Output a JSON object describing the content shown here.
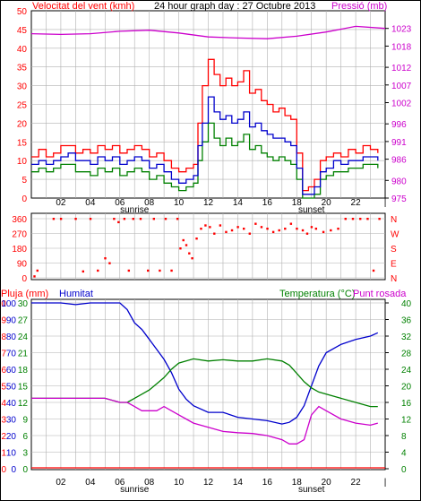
{
  "colors": {
    "wind_speed": "#ff0000",
    "wind_gust": "#ff0000",
    "wind_avg": "#0000cc",
    "wind_low": "#008000",
    "pressure": "#cc00cc",
    "direction": "#ff0000",
    "rain": "#ff0000",
    "humidity": "#0000cc",
    "temperature": "#008000",
    "dewpoint": "#cc00cc",
    "grid": "#b0b0b0",
    "frame": "#000000"
  },
  "chart_data": [
    {
      "type": "line",
      "panel": "wind-pressure",
      "title": "24 hour graph day : 27 Octubre 2013",
      "ylabel_left": "Velocitat del vent (kmh)",
      "ylabel_right": "Pressió (mb)",
      "x_ticks": [
        "02",
        "04",
        "06",
        "08",
        "10",
        "12",
        "14",
        "16",
        "18",
        "20",
        "22",
        "|"
      ],
      "x_annotations": [
        "sunrise",
        "sunset"
      ],
      "y_left_ticks": [
        "0",
        "5",
        "10",
        "15",
        "20",
        "25",
        "30",
        "35",
        "40",
        "45",
        "50"
      ],
      "y_right_ticks": [
        "975",
        "980",
        "986",
        "991",
        "996",
        "1002",
        "1007",
        "1012",
        "1018",
        "1023"
      ],
      "ylim_left": [
        0,
        50
      ],
      "ylim_right": [
        975,
        1028
      ],
      "x_range_hours": [
        0,
        24
      ],
      "grid": true,
      "series": [
        {
          "key": "gust",
          "x": [
            0,
            0.5,
            1,
            1.5,
            2,
            2.5,
            3,
            3.5,
            4,
            4.5,
            5,
            5.5,
            6,
            6.5,
            7,
            7.5,
            8,
            8.5,
            9,
            9.5,
            10,
            10.5,
            11,
            11.3,
            11.6,
            12,
            12.4,
            12.8,
            13.2,
            13.6,
            14,
            14.4,
            14.8,
            15.2,
            15.6,
            16,
            16.4,
            16.8,
            17.2,
            17.6,
            18,
            18.4,
            18.8,
            19.2,
            19.6,
            20,
            20.5,
            21,
            21.5,
            22,
            22.5,
            23,
            23.5
          ],
          "y": [
            11,
            13,
            11,
            12,
            14,
            14,
            12,
            13,
            12,
            14,
            13,
            14,
            12,
            13,
            14,
            13,
            11,
            12,
            10,
            8,
            7,
            8,
            9,
            20,
            30,
            37,
            33,
            30,
            32,
            30,
            31,
            34,
            28,
            29,
            26,
            25,
            23,
            24,
            22,
            21,
            12,
            2,
            3,
            5,
            10,
            11,
            12,
            11,
            13,
            12,
            14,
            13,
            12
          ]
        },
        {
          "key": "average",
          "x": [
            0,
            0.5,
            1,
            1.5,
            2,
            2.5,
            3,
            3.5,
            4,
            4.5,
            5,
            5.5,
            6,
            6.5,
            7,
            7.5,
            8,
            8.5,
            9,
            9.5,
            10,
            10.5,
            11,
            11.3,
            11.6,
            12,
            12.4,
            12.8,
            13.2,
            13.6,
            14,
            14.4,
            14.8,
            15.2,
            15.6,
            16,
            16.4,
            16.8,
            17.2,
            17.6,
            18,
            18.4,
            18.8,
            19.2,
            19.6,
            20,
            20.5,
            21,
            21.5,
            22,
            22.5,
            23,
            23.5
          ],
          "y": [
            9,
            10,
            9,
            10,
            11,
            12,
            10,
            10,
            9,
            11,
            10,
            11,
            9,
            10,
            11,
            10,
            8,
            9,
            7,
            5,
            4,
            5,
            6,
            14,
            20,
            27,
            23,
            21,
            22,
            20,
            21,
            23,
            19,
            20,
            18,
            17,
            16,
            16,
            15,
            14,
            8,
            1,
            1,
            3,
            7,
            8,
            10,
            9,
            10,
            10,
            11,
            11,
            10
          ]
        },
        {
          "key": "low",
          "x": [
            0,
            0.5,
            1,
            1.5,
            2,
            2.5,
            3,
            3.5,
            4,
            4.5,
            5,
            5.5,
            6,
            6.5,
            7,
            7.5,
            8,
            8.5,
            9,
            9.5,
            10,
            10.5,
            11,
            11.3,
            11.6,
            12,
            12.4,
            12.8,
            13.2,
            13.6,
            14,
            14.4,
            14.8,
            15.2,
            15.6,
            16,
            16.4,
            16.8,
            17.2,
            17.6,
            18,
            18.4,
            18.8,
            19.2,
            19.6,
            20,
            20.5,
            21,
            21.5,
            22,
            22.5,
            23,
            23.5
          ],
          "y": [
            7,
            8,
            7,
            8,
            9,
            9,
            7,
            7,
            6,
            8,
            7,
            8,
            6,
            7,
            8,
            7,
            5,
            6,
            4,
            3,
            2,
            3,
            4,
            10,
            15,
            20,
            16,
            14,
            16,
            14,
            15,
            17,
            13,
            14,
            12,
            11,
            10,
            11,
            10,
            9,
            5,
            0,
            0,
            1,
            5,
            6,
            7,
            7,
            8,
            8,
            9,
            9,
            8
          ]
        },
        {
          "key": "pressure",
          "x": [
            0,
            2,
            4,
            6,
            8,
            10,
            12,
            14,
            16,
            18,
            20,
            22,
            24
          ],
          "y": [
            1021.5,
            1021.3,
            1021.5,
            1022.2,
            1022.5,
            1021.7,
            1020.6,
            1020.3,
            1020.1,
            1020.8,
            1022,
            1023.6,
            1023
          ]
        }
      ]
    },
    {
      "type": "scatter",
      "panel": "wind-direction",
      "y_ticks": [
        "0",
        "90",
        "180",
        "270",
        "360"
      ],
      "y_right_ticks": [
        "N",
        "E",
        "S",
        "W",
        "N"
      ],
      "ylim": [
        0,
        360
      ],
      "x_range_hours": [
        0,
        24
      ],
      "grid": true,
      "x": [
        0.2,
        0.4,
        1.5,
        2,
        3,
        3.5,
        4,
        4.5,
        5,
        5.3,
        5.6,
        5.9,
        6.3,
        6.6,
        6.9,
        7.4,
        7.9,
        8.3,
        8.7,
        9.1,
        9.5,
        9.9,
        10.1,
        10.3,
        10.5,
        10.7,
        10.9,
        11.2,
        11.5,
        11.8,
        12.1,
        12.4,
        12.8,
        13.2,
        13.6,
        14,
        14.4,
        14.8,
        15.2,
        15.6,
        16,
        16.4,
        16.8,
        17.2,
        17.6,
        18,
        18.4,
        18.7,
        19,
        19.3,
        19.8,
        20.3,
        20.8,
        21.3,
        21.8,
        22.3,
        22.8,
        23.2,
        23.6
      ],
      "y": [
        10,
        45,
        360,
        360,
        360,
        40,
        360,
        45,
        120,
        90,
        360,
        340,
        360,
        45,
        360,
        360,
        45,
        360,
        45,
        360,
        45,
        360,
        180,
        230,
        200,
        150,
        120,
        240,
        300,
        320,
        310,
        270,
        320,
        280,
        290,
        310,
        300,
        270,
        330,
        310,
        300,
        280,
        290,
        300,
        330,
        300,
        290,
        270,
        310,
        300,
        280,
        290,
        300,
        360,
        360,
        360,
        360,
        45,
        360
      ]
    },
    {
      "type": "line",
      "panel": "temperature-humidity",
      "ylabel_left": "Pluja (mm)",
      "ylabel_left2": "Humitat",
      "ylabel_right": "Temperatura (°C)",
      "ylabel_right2": "Punt rosada",
      "x_ticks": [
        "02",
        "04",
        "06",
        "08",
        "10",
        "12",
        "14",
        "16",
        "18",
        "20",
        "22",
        "|"
      ],
      "x_annotations": [
        "sunrise",
        "sunset"
      ],
      "y_rain_ticks": [
        "0",
        "1",
        "2",
        "3",
        "4",
        "5",
        "6",
        "7",
        "8",
        "9",
        "10"
      ],
      "y_humidity_ticks": [
        "0",
        "10",
        "20",
        "30",
        "40",
        "50",
        "60",
        "70",
        "80",
        "90",
        "100"
      ],
      "y_temp_left_ticks": [
        "0",
        "3",
        "6",
        "9",
        "12",
        "15",
        "18",
        "21",
        "24",
        "27",
        "30"
      ],
      "y_temp_right_ticks": [
        "0",
        "4",
        "8",
        "12",
        "16",
        "20",
        "24",
        "28",
        "32",
        "36",
        "40"
      ],
      "ylim_temp": [
        0,
        40
      ],
      "ylim_humidity": [
        0,
        100
      ],
      "x_range_hours": [
        0,
        24
      ],
      "grid": true,
      "series": [
        {
          "key": "humidity",
          "x": [
            0,
            1,
            2,
            3,
            4,
            5,
            6,
            6.5,
            7,
            7.5,
            8,
            8.5,
            9,
            9.5,
            10,
            10.5,
            11,
            12,
            13,
            14,
            15,
            16,
            17,
            17.5,
            18,
            18.5,
            19,
            19.5,
            20,
            21,
            22,
            23,
            23.5
          ],
          "y": [
            100,
            100,
            100,
            99,
            100,
            100,
            100,
            96,
            88,
            84,
            78,
            72,
            66,
            58,
            48,
            42,
            38,
            34,
            34,
            31,
            30,
            29,
            27,
            28,
            31,
            38,
            50,
            62,
            70,
            75,
            78,
            80,
            82
          ]
        },
        {
          "key": "temperature",
          "x": [
            0,
            1,
            2,
            3,
            4,
            5,
            6,
            6.5,
            7,
            7.5,
            8,
            8.5,
            9,
            9.5,
            10,
            10.5,
            11,
            12,
            13,
            14,
            15,
            16,
            17,
            17.5,
            18,
            18.5,
            19,
            19.5,
            20,
            21,
            22,
            23,
            23.5
          ],
          "y": [
            17,
            17,
            17,
            17,
            17,
            17,
            16,
            16,
            17,
            18,
            19,
            20.5,
            22,
            24,
            25.5,
            26,
            26.5,
            26,
            26.3,
            26,
            26,
            26.5,
            26,
            25,
            23,
            21,
            19.5,
            18.5,
            18,
            17,
            16,
            15,
            15
          ]
        },
        {
          "key": "dewpoint",
          "x": [
            0,
            1,
            2,
            3,
            4,
            5,
            6,
            6.5,
            7,
            7.5,
            8,
            8.5,
            9,
            9.5,
            10,
            10.5,
            11,
            12,
            13,
            14,
            15,
            16,
            17,
            17.5,
            18,
            18.5,
            19,
            19.5,
            20,
            21,
            22,
            23,
            23.5
          ],
          "y": [
            17,
            17,
            17,
            17,
            17,
            17,
            16,
            16,
            15,
            14,
            14,
            14,
            15,
            14,
            13,
            12,
            11,
            10,
            9,
            8.7,
            8.5,
            8,
            7,
            6,
            6,
            7,
            13,
            15,
            14,
            12,
            11,
            10.5,
            11
          ]
        },
        {
          "key": "rain",
          "x": [
            0,
            24
          ],
          "y": [
            0,
            0
          ]
        }
      ]
    }
  ]
}
